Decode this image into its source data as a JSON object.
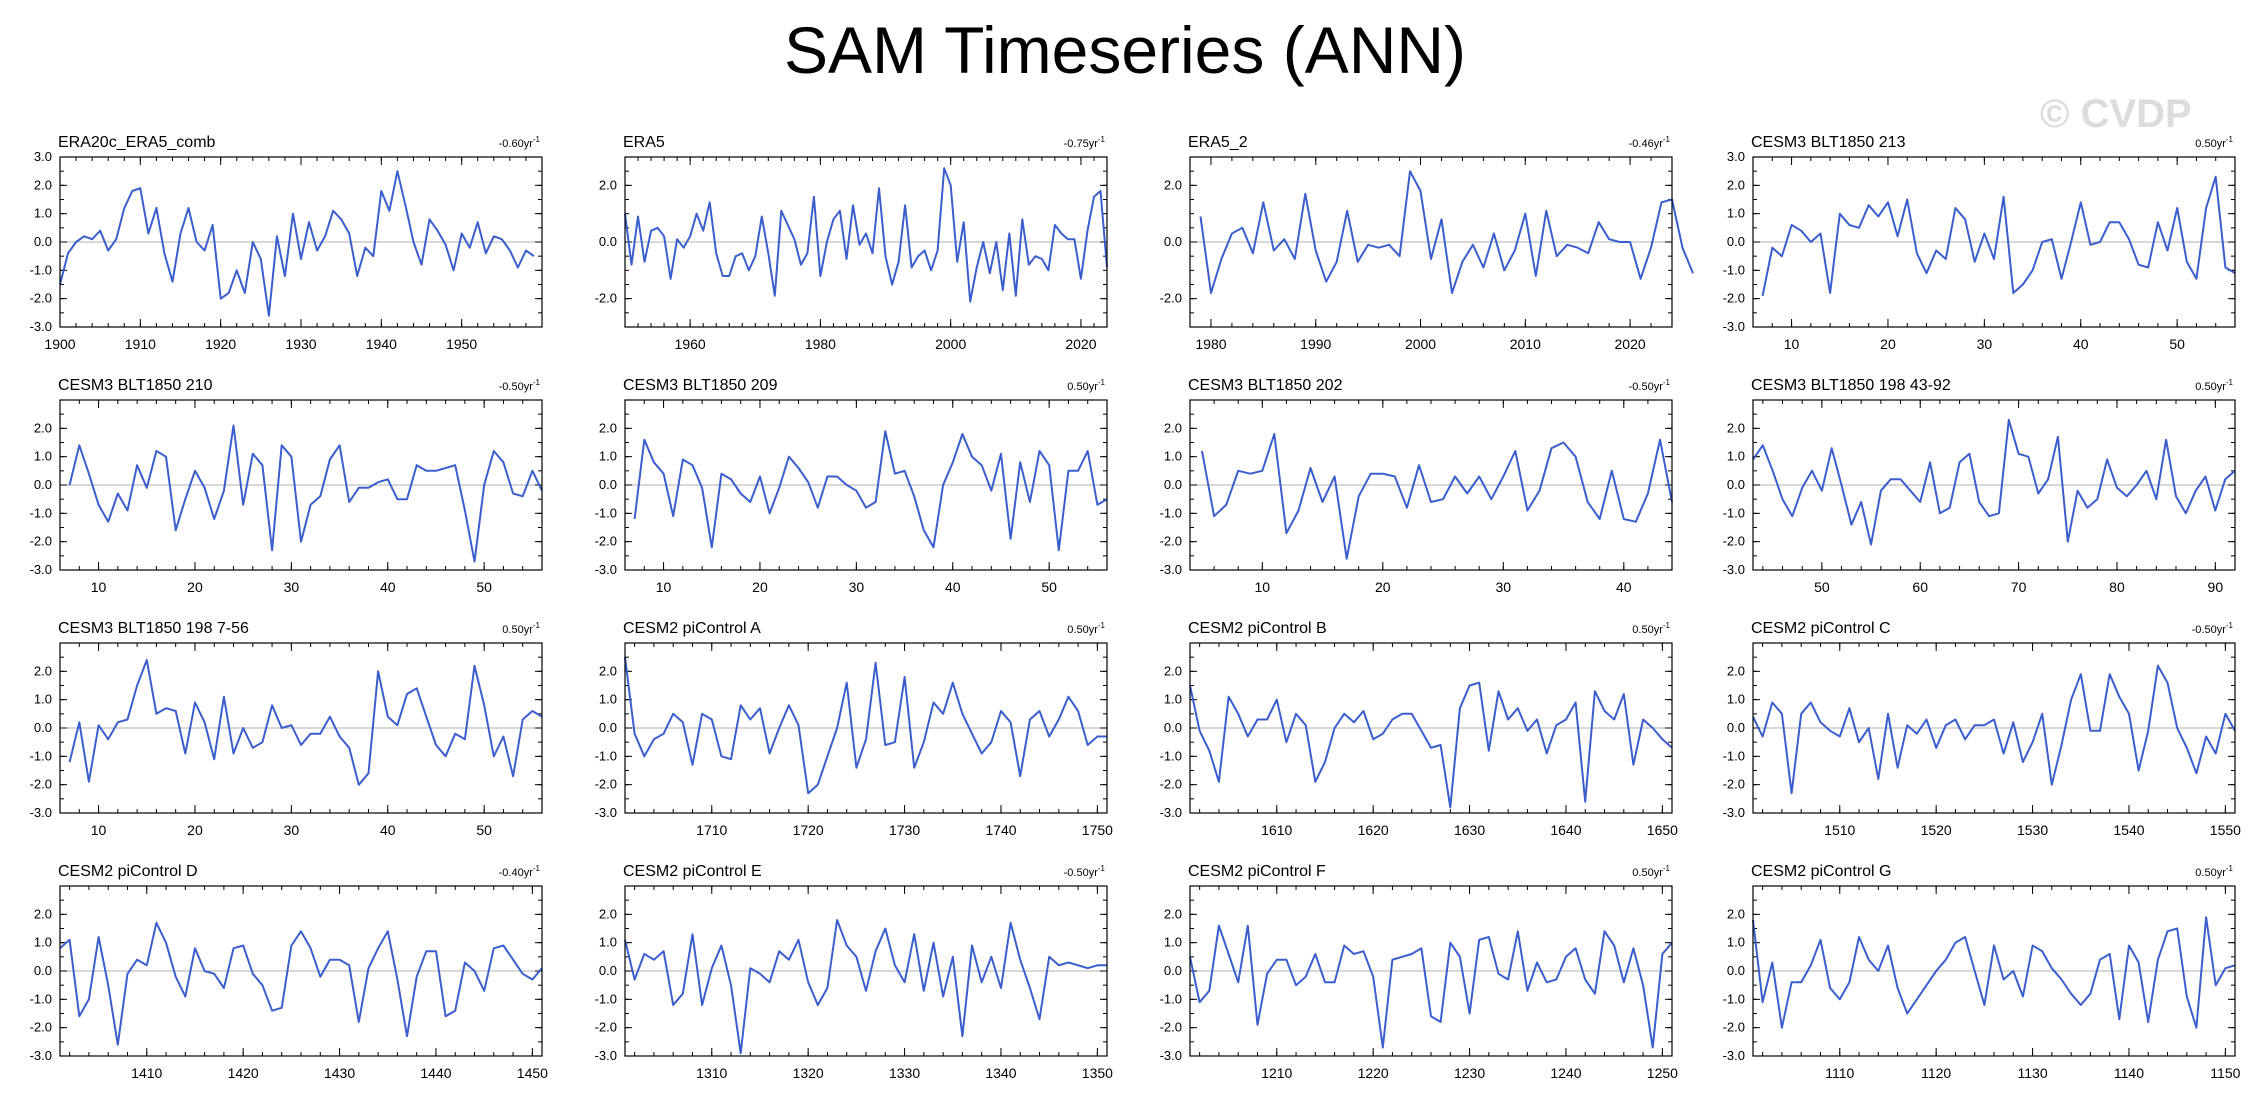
{
  "title": "SAM Timeseries (ANN)",
  "watermark": "© CVDP",
  "line_color": "#3a5fcd",
  "chart_data": [
    {
      "type": "line",
      "title": "ERA20c_ERA5_comb",
      "trend": "-0.60yr",
      "start": 1900,
      "xlim": [
        1900,
        1960
      ],
      "xticks": [
        1900,
        1910,
        1920,
        1930,
        1940,
        1950
      ],
      "yticks": [
        "3.0",
        "2.0",
        "1.0",
        "0.0",
        "-1.0",
        "-2.0",
        "-3.0"
      ],
      "ylim": [
        -3,
        3
      ],
      "values": [
        -1.5,
        -0.4,
        0.0,
        0.2,
        0.1,
        0.4,
        -0.3,
        0.1,
        1.2,
        1.8,
        1.9,
        0.3,
        1.2,
        -0.4,
        -1.4,
        0.3,
        1.2,
        0.0,
        -0.3,
        0.6,
        -2.0,
        -1.8,
        -1.0,
        -1.8,
        0.0,
        -0.6,
        -2.6,
        0.2,
        -1.2,
        1.0,
        -0.6,
        0.7,
        -0.3,
        0.2,
        1.1,
        0.8,
        0.3,
        -1.2,
        -0.2,
        -0.5,
        1.8,
        1.1,
        2.5,
        1.3,
        0.0,
        -0.8,
        0.8,
        0.4,
        -0.1,
        -1.0,
        0.3,
        -0.2,
        0.7,
        -0.4,
        0.2,
        0.1,
        -0.3,
        -0.9,
        -0.3,
        -0.5
      ]
    },
    {
      "type": "line",
      "title": "ERA5",
      "trend": "-0.75yr",
      "start": 1950,
      "xlim": [
        1950,
        2024
      ],
      "xticks": [
        1960,
        1980,
        2000,
        2020
      ],
      "yticks": [
        "2.0",
        "0.0",
        "-2.0"
      ],
      "ylim": [
        -3,
        3
      ],
      "values": [
        1.0,
        -0.8,
        0.9,
        -0.7,
        0.4,
        0.5,
        0.2,
        -1.3,
        0.1,
        -0.2,
        0.2,
        1.0,
        0.4,
        1.4,
        -0.4,
        -1.2,
        -1.2,
        -0.5,
        -0.4,
        -1.0,
        -0.5,
        0.9,
        -0.4,
        -1.9,
        1.1,
        0.6,
        0.1,
        -0.8,
        -0.4,
        1.6,
        -1.2,
        0.0,
        0.8,
        1.1,
        -0.6,
        1.3,
        -0.1,
        0.3,
        -0.4,
        1.9,
        -0.5,
        -1.5,
        -0.7,
        1.3,
        -0.9,
        -0.5,
        -0.3,
        -1.0,
        -0.3,
        2.6,
        2.0,
        -0.7,
        0.7,
        -2.1,
        -0.9,
        0.0,
        -1.1,
        0.0,
        -1.7,
        0.3,
        -1.9,
        0.8,
        -0.8,
        -0.5,
        -0.6,
        -1.0,
        0.6,
        0.3,
        0.1,
        0.1,
        -1.3,
        0.4,
        1.6,
        1.8,
        -0.9
      ]
    },
    {
      "type": "line",
      "title": "ERA5_2",
      "trend": "-0.46yr",
      "start": 1979,
      "xlim": [
        1978,
        2024
      ],
      "xticks": [
        1980,
        1990,
        2000,
        2010,
        2020
      ],
      "yticks": [
        "2.0",
        "0.0",
        "-2.0"
      ],
      "ylim": [
        -3,
        3
      ],
      "values": [
        0.9,
        -1.8,
        -0.6,
        0.3,
        0.5,
        -0.4,
        1.4,
        -0.3,
        0.1,
        -0.6,
        1.7,
        -0.3,
        -1.4,
        -0.7,
        1.1,
        -0.7,
        -0.1,
        -0.2,
        -0.1,
        -0.5,
        2.5,
        1.8,
        -0.6,
        0.8,
        -1.8,
        -0.7,
        -0.1,
        -0.9,
        0.3,
        -1.0,
        -0.3,
        1.0,
        -1.2,
        1.1,
        -0.5,
        -0.1,
        -0.2,
        -0.4,
        0.7,
        0.1,
        0.0,
        0.0,
        -1.3,
        -0.2,
        1.4,
        1.5,
        -0.2,
        -1.1
      ]
    },
    {
      "type": "line",
      "title": "CESM3 BLT1850 213",
      "trend": "0.50yr",
      "start": 7,
      "xlim": [
        6,
        56
      ],
      "xticks": [
        10,
        20,
        30,
        40,
        50
      ],
      "yticks": [
        "3.0",
        "2.0",
        "1.0",
        "0.0",
        "-1.0",
        "-2.0",
        "-3.0"
      ],
      "ylim": [
        -3,
        3
      ],
      "values": [
        -1.9,
        -0.2,
        -0.5,
        0.6,
        0.4,
        0.0,
        0.3,
        -1.8,
        1.0,
        0.6,
        0.5,
        1.3,
        0.9,
        1.4,
        0.2,
        1.5,
        -0.4,
        -1.1,
        -0.3,
        -0.6,
        1.2,
        0.8,
        -0.7,
        0.3,
        -0.6,
        1.6,
        -1.8,
        -1.5,
        -1.0,
        0.0,
        0.1,
        -1.3,
        0.0,
        1.4,
        -0.1,
        0.0,
        0.7,
        0.7,
        0.1,
        -0.8,
        -0.9,
        0.7,
        -0.3,
        1.2,
        -0.7,
        -1.3,
        1.2,
        2.3,
        -0.9,
        -1.1
      ]
    },
    {
      "type": "line",
      "title": "CESM3 BLT1850 210",
      "trend": "-0.50yr",
      "start": 7,
      "xlim": [
        6,
        56
      ],
      "xticks": [
        10,
        20,
        30,
        40,
        50
      ],
      "yticks": [
        "2.0",
        "1.0",
        "0.0",
        "-1.0",
        "-2.0",
        "-3.0"
      ],
      "ylim": [
        -3,
        3
      ],
      "values": [
        0.0,
        1.4,
        0.4,
        -0.7,
        -1.3,
        -0.3,
        -0.9,
        0.7,
        -0.1,
        1.2,
        1.0,
        -1.6,
        -0.5,
        0.5,
        -0.1,
        -1.2,
        -0.2,
        2.1,
        -0.7,
        1.1,
        0.7,
        -2.3,
        1.4,
        1.0,
        -2.0,
        -0.7,
        -0.4,
        0.9,
        1.4,
        -0.6,
        -0.1,
        -0.1,
        0.1,
        0.2,
        -0.5,
        -0.5,
        0.7,
        0.5,
        0.5,
        0.6,
        0.7,
        -0.9,
        -2.7,
        0.0,
        1.2,
        0.8,
        -0.3,
        -0.4,
        0.5,
        -0.2
      ]
    },
    {
      "type": "line",
      "title": "CESM3 BLT1850 209",
      "trend": "0.50yr",
      "start": 7,
      "xlim": [
        6,
        56
      ],
      "xticks": [
        10,
        20,
        30,
        40,
        50
      ],
      "yticks": [
        "2.0",
        "1.0",
        "0.0",
        "-1.0",
        "-2.0",
        "-3.0"
      ],
      "ylim": [
        -3,
        3
      ],
      "values": [
        -1.2,
        1.6,
        0.8,
        0.4,
        -1.1,
        0.9,
        0.7,
        -0.1,
        -2.2,
        0.4,
        0.2,
        -0.3,
        -0.6,
        0.3,
        -1.0,
        -0.1,
        1.0,
        0.6,
        0.1,
        -0.8,
        0.3,
        0.3,
        0.0,
        -0.2,
        -0.8,
        -0.6,
        1.9,
        0.4,
        0.5,
        -0.4,
        -1.6,
        -2.2,
        0.0,
        0.8,
        1.8,
        1.0,
        0.7,
        -0.2,
        1.1,
        -1.9,
        0.8,
        -0.6,
        1.2,
        0.7,
        -2.3,
        0.5,
        0.5,
        1.2,
        -0.7,
        -0.5
      ]
    },
    {
      "type": "line",
      "title": "CESM3 BLT1850 202",
      "trend": "-0.50yr",
      "start": 5,
      "xlim": [
        4,
        44
      ],
      "xticks": [
        10,
        20,
        30,
        40
      ],
      "yticks": [
        "2.0",
        "1.0",
        "0.0",
        "-1.0",
        "-2.0",
        "-3.0"
      ],
      "ylim": [
        -3,
        3
      ],
      "values": [
        1.2,
        -1.1,
        -0.7,
        0.5,
        0.4,
        0.5,
        1.8,
        -1.7,
        -0.9,
        0.6,
        -0.6,
        0.3,
        -2.6,
        -0.4,
        0.4,
        0.4,
        0.3,
        -0.8,
        0.7,
        -0.6,
        -0.5,
        0.3,
        -0.3,
        0.3,
        -0.5,
        0.3,
        1.2,
        -0.9,
        -0.2,
        1.3,
        1.5,
        1.0,
        -0.6,
        -1.2,
        0.5,
        -1.2,
        -1.3,
        -0.3,
        1.6,
        -0.6
      ]
    },
    {
      "type": "line",
      "title": "CESM3 BLT1850 198 43-92",
      "trend": "0.50yr",
      "start": 43,
      "xlim": [
        43,
        92
      ],
      "xticks": [
        50,
        60,
        70,
        80,
        90
      ],
      "yticks": [
        "2.0",
        "1.0",
        "0.0",
        "-1.0",
        "-2.0",
        "-3.0"
      ],
      "ylim": [
        -3,
        3
      ],
      "values": [
        0.9,
        1.4,
        0.5,
        -0.5,
        -1.1,
        -0.1,
        0.5,
        -0.2,
        1.3,
        0.0,
        -1.4,
        -0.6,
        -2.1,
        -0.2,
        0.2,
        0.2,
        -0.2,
        -0.6,
        0.8,
        -1.0,
        -0.8,
        0.8,
        1.1,
        -0.6,
        -1.1,
        -1.0,
        2.3,
        1.1,
        1.0,
        -0.3,
        0.2,
        1.7,
        -2.0,
        -0.2,
        -0.8,
        -0.5,
        0.9,
        -0.1,
        -0.4,
        0.0,
        0.5,
        -0.5,
        1.6,
        -0.4,
        -1.0,
        -0.2,
        0.3,
        -0.9,
        0.2,
        0.5
      ]
    },
    {
      "type": "line",
      "title": "CESM3 BLT1850 198 7-56",
      "trend": "0.50yr",
      "start": 7,
      "xlim": [
        6,
        56
      ],
      "xticks": [
        10,
        20,
        30,
        40,
        50
      ],
      "yticks": [
        "2.0",
        "1.0",
        "0.0",
        "-1.0",
        "-2.0",
        "-3.0"
      ],
      "ylim": [
        -3,
        3
      ],
      "values": [
        -1.2,
        0.2,
        -1.9,
        0.1,
        -0.4,
        0.2,
        0.3,
        1.5,
        2.4,
        0.5,
        0.7,
        0.6,
        -0.9,
        0.9,
        0.2,
        -1.1,
        1.1,
        -0.9,
        0.0,
        -0.7,
        -0.5,
        0.8,
        0.0,
        0.1,
        -0.6,
        -0.2,
        -0.2,
        0.4,
        -0.3,
        -0.7,
        -2.0,
        -1.6,
        2.0,
        0.4,
        0.1,
        1.2,
        1.4,
        0.4,
        -0.6,
        -1.0,
        -0.2,
        -0.4,
        2.2,
        0.8,
        -1.0,
        -0.3,
        -1.7,
        0.3,
        0.6,
        0.4
      ]
    },
    {
      "type": "line",
      "title": "CESM2 piControl A",
      "trend": "0.50yr",
      "start": 1701,
      "xlim": [
        1701,
        1751
      ],
      "xticks": [
        1710,
        1720,
        1730,
        1740,
        1750
      ],
      "yticks": [
        "2.0",
        "1.0",
        "0.0",
        "-1.0",
        "-2.0",
        "-3.0"
      ],
      "ylim": [
        -3,
        3
      ],
      "values": [
        2.5,
        -0.2,
        -1.0,
        -0.4,
        -0.2,
        0.5,
        0.2,
        -1.3,
        0.5,
        0.3,
        -1.0,
        -1.1,
        0.8,
        0.3,
        0.7,
        -0.9,
        0.0,
        0.8,
        0.1,
        -2.3,
        -2.0,
        -1.0,
        0.0,
        1.6,
        -1.4,
        -0.4,
        2.3,
        -0.6,
        -0.5,
        1.8,
        -1.4,
        -0.5,
        0.9,
        0.5,
        1.6,
        0.5,
        -0.2,
        -0.9,
        -0.5,
        0.6,
        0.2,
        -1.7,
        0.3,
        0.6,
        -0.3,
        0.3,
        1.1,
        0.6,
        -0.6,
        -0.3,
        -0.3
      ]
    },
    {
      "type": "line",
      "title": "CESM2 piControl B",
      "trend": "0.50yr",
      "start": 1601,
      "xlim": [
        1601,
        1651
      ],
      "xticks": [
        1610,
        1620,
        1630,
        1640,
        1650
      ],
      "yticks": [
        "2.0",
        "1.0",
        "0.0",
        "-1.0",
        "-2.0",
        "-3.0"
      ],
      "ylim": [
        -3,
        3
      ],
      "values": [
        1.5,
        -0.1,
        -0.8,
        -1.9,
        1.1,
        0.5,
        -0.3,
        0.3,
        0.3,
        1.0,
        -0.5,
        0.5,
        0.1,
        -1.9,
        -1.2,
        0.0,
        0.5,
        0.2,
        0.6,
        -0.4,
        -0.2,
        0.3,
        0.5,
        0.5,
        -0.1,
        -0.7,
        -0.6,
        -2.8,
        0.7,
        1.5,
        1.6,
        -0.8,
        1.3,
        0.3,
        0.7,
        -0.1,
        0.3,
        -0.9,
        0.1,
        0.3,
        0.9,
        -2.6,
        1.3,
        0.6,
        0.3,
        1.2,
        -1.3,
        0.3,
        0.0,
        -0.4,
        -0.7
      ]
    },
    {
      "type": "line",
      "title": "CESM2 piControl C",
      "trend": "-0.50yr",
      "start": 1501,
      "xlim": [
        1501,
        1551
      ],
      "xticks": [
        1510,
        1520,
        1530,
        1540,
        1550
      ],
      "yticks": [
        "2.0",
        "1.0",
        "0.0",
        "-1.0",
        "-2.0",
        "-3.0"
      ],
      "ylim": [
        -3,
        3
      ],
      "values": [
        0.4,
        -0.3,
        0.9,
        0.5,
        -2.3,
        0.5,
        0.9,
        0.2,
        -0.1,
        -0.3,
        0.7,
        -0.5,
        0.0,
        -1.8,
        0.5,
        -1.4,
        0.1,
        -0.2,
        0.3,
        -0.7,
        0.1,
        0.3,
        -0.4,
        0.1,
        0.1,
        0.3,
        -0.9,
        0.2,
        -1.2,
        -0.5,
        0.5,
        -2.0,
        -0.6,
        1.0,
        1.9,
        -0.1,
        -0.1,
        1.9,
        1.1,
        0.5,
        -1.5,
        -0.1,
        2.2,
        1.6,
        0.0,
        -0.7,
        -1.6,
        -0.3,
        -0.9,
        0.5,
        -0.1
      ]
    },
    {
      "type": "line",
      "title": "CESM2 piControl D",
      "trend": "-0.40yr",
      "start": 1401,
      "xlim": [
        1401,
        1451
      ],
      "xticks": [
        1410,
        1420,
        1430,
        1440,
        1450
      ],
      "yticks": [
        "2.0",
        "1.0",
        "0.0",
        "-1.0",
        "-2.0",
        "-3.0"
      ],
      "ylim": [
        -3,
        3
      ],
      "values": [
        0.8,
        1.1,
        -1.6,
        -1.0,
        1.2,
        -0.5,
        -2.6,
        -0.1,
        0.4,
        0.2,
        1.7,
        1.0,
        -0.2,
        -0.9,
        0.8,
        0.0,
        -0.1,
        -0.6,
        0.8,
        0.9,
        -0.1,
        -0.5,
        -1.4,
        -1.3,
        0.9,
        1.4,
        0.8,
        -0.2,
        0.4,
        0.4,
        0.2,
        -1.8,
        0.1,
        0.8,
        1.4,
        -0.3,
        -2.3,
        -0.2,
        0.7,
        0.7,
        -1.6,
        -1.4,
        0.3,
        0.0,
        -0.7,
        0.8,
        0.9,
        0.4,
        -0.1,
        -0.3,
        0.1
      ]
    },
    {
      "type": "line",
      "title": "CESM2 piControl E",
      "trend": "-0.50yr",
      "start": 1301,
      "xlim": [
        1301,
        1351
      ],
      "xticks": [
        1310,
        1320,
        1330,
        1340,
        1350
      ],
      "yticks": [
        "2.0",
        "1.0",
        "0.0",
        "-1.0",
        "-2.0",
        "-3.0"
      ],
      "ylim": [
        -3,
        3
      ],
      "values": [
        1.1,
        -0.3,
        0.6,
        0.4,
        0.7,
        -1.2,
        -0.8,
        1.3,
        -1.2,
        0.1,
        0.9,
        -0.5,
        -2.9,
        0.1,
        -0.1,
        -0.4,
        0.7,
        0.4,
        1.1,
        -0.4,
        -1.2,
        -0.6,
        1.8,
        0.9,
        0.5,
        -0.7,
        0.7,
        1.5,
        0.2,
        -0.4,
        1.3,
        -0.7,
        1.0,
        -0.9,
        0.5,
        -2.3,
        0.9,
        -0.4,
        0.5,
        -0.6,
        1.7,
        0.4,
        -0.6,
        -1.7,
        0.5,
        0.2,
        0.3,
        0.2,
        0.1,
        0.2,
        0.2
      ]
    },
    {
      "type": "line",
      "title": "CESM2 piControl F",
      "trend": "0.50yr",
      "start": 1201,
      "xlim": [
        1201,
        1251
      ],
      "xticks": [
        1210,
        1220,
        1230,
        1240,
        1250
      ],
      "yticks": [
        "2.0",
        "1.0",
        "0.0",
        "-1.0",
        "-2.0",
        "-3.0"
      ],
      "ylim": [
        -3,
        3
      ],
      "values": [
        0.5,
        -1.1,
        -0.7,
        1.6,
        0.6,
        -0.4,
        1.6,
        -1.9,
        -0.1,
        0.4,
        0.4,
        -0.5,
        -0.2,
        0.6,
        -0.4,
        -0.4,
        0.9,
        0.6,
        0.7,
        -0.2,
        -2.7,
        0.4,
        0.5,
        0.6,
        0.8,
        -1.6,
        -1.8,
        1.0,
        0.5,
        -1.5,
        1.1,
        1.2,
        -0.1,
        -0.3,
        1.4,
        -0.7,
        0.3,
        -0.4,
        -0.3,
        0.5,
        0.8,
        -0.3,
        -0.8,
        1.4,
        0.9,
        -0.4,
        0.8,
        -0.5,
        -2.7,
        0.6,
        1.0
      ]
    },
    {
      "type": "line",
      "title": "CESM2 piControl G",
      "trend": "0.50yr",
      "start": 1101,
      "xlim": [
        1101,
        1151
      ],
      "xticks": [
        1110,
        1120,
        1130,
        1140,
        1150
      ],
      "yticks": [
        "2.0",
        "1.0",
        "0.0",
        "-1.0",
        "-2.0",
        "-3.0"
      ],
      "ylim": [
        -3,
        3
      ],
      "values": [
        1.8,
        -1.1,
        0.3,
        -2.0,
        -0.4,
        -0.4,
        0.2,
        1.1,
        -0.6,
        -1.0,
        -0.4,
        1.2,
        0.4,
        0.0,
        0.9,
        -0.6,
        -1.5,
        -1.0,
        -0.5,
        0.0,
        0.4,
        1.0,
        1.2,
        0.0,
        -1.2,
        0.9,
        -0.3,
        0.0,
        -0.9,
        0.9,
        0.7,
        0.1,
        -0.3,
        -0.8,
        -1.2,
        -0.8,
        0.4,
        0.6,
        -1.7,
        0.9,
        0.3,
        -1.8,
        0.4,
        1.4,
        1.5,
        -0.9,
        -2.0,
        1.9,
        -0.5,
        0.1,
        0.2
      ]
    }
  ]
}
